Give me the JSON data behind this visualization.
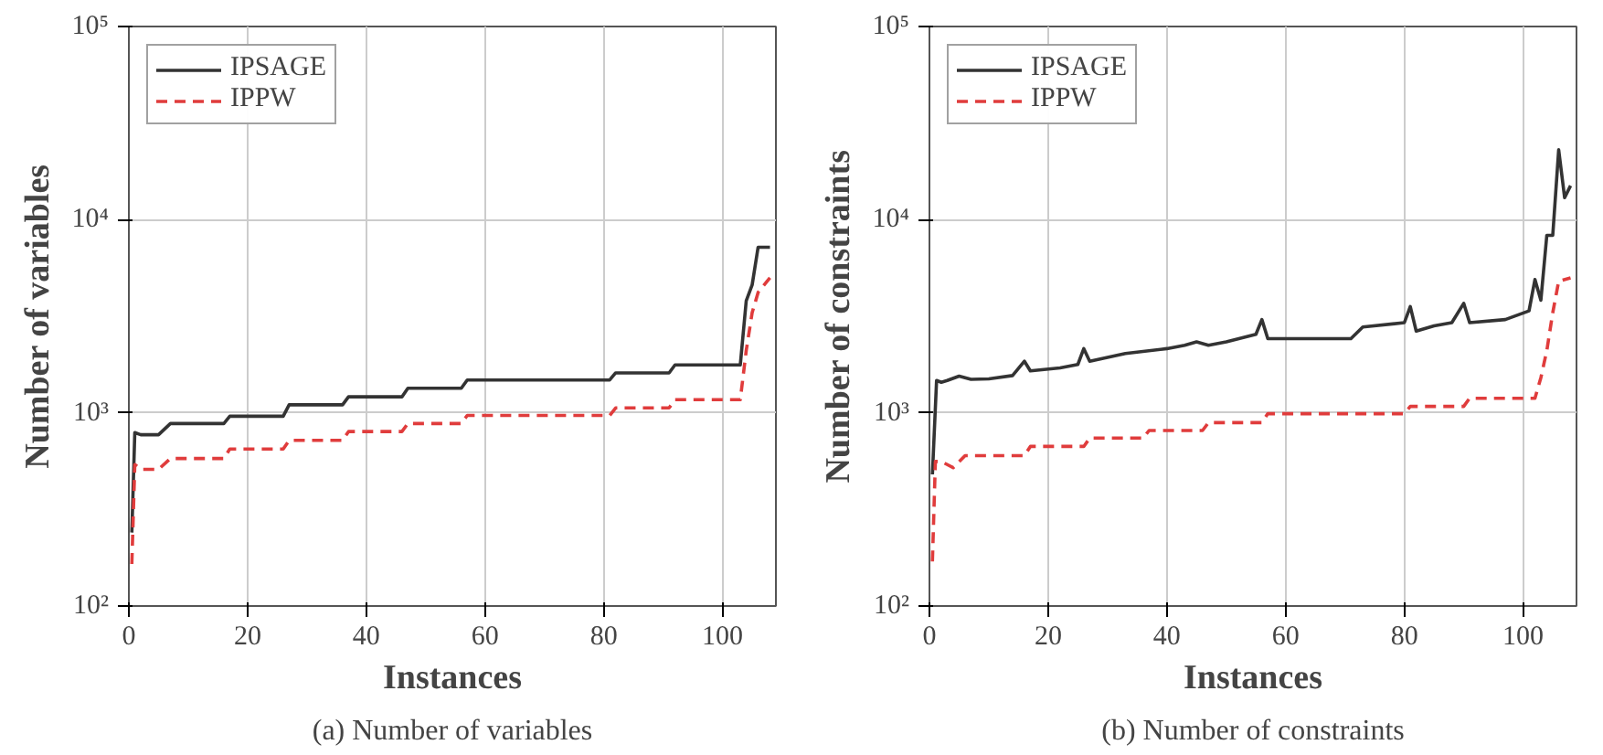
{
  "chart_data": [
    {
      "type": "line",
      "title": "(a) Number of variables",
      "xlabel": "Instances",
      "ylabel": "Number of variables",
      "log": "y",
      "grid": true,
      "legend": "top left",
      "marker": "none",
      "xlim": [
        0,
        109
      ],
      "ylim": [
        100,
        100000
      ],
      "xticks": [
        0,
        20,
        40,
        60,
        80,
        100
      ],
      "yticks": [
        {
          "value": 100,
          "label": "10²"
        },
        {
          "value": 1000,
          "label": "10³"
        },
        {
          "value": 10000,
          "label": "10⁴"
        },
        {
          "value": 100000,
          "label": "10⁵"
        }
      ],
      "series": [
        {
          "name": "IPSAGE",
          "color": "#333333",
          "line_style": "solid",
          "x": [
            0.5,
            1,
            2,
            5,
            7,
            16,
            17,
            26,
            27,
            36,
            37,
            46,
            47,
            56,
            57,
            81,
            82,
            91,
            92,
            103,
            104,
            105,
            106,
            108
          ],
          "values": [
            240,
            790,
            770,
            770,
            880,
            880,
            960,
            960,
            1100,
            1100,
            1210,
            1210,
            1340,
            1340,
            1480,
            1480,
            1610,
            1610,
            1770,
            1770,
            3800,
            4600,
            7200,
            7200
          ]
        },
        {
          "name": "IPPW",
          "color": "#e03c3c",
          "line_style": "dashed",
          "x": [
            0.5,
            1,
            2,
            5,
            7,
            16,
            17,
            26,
            27,
            36,
            37,
            46,
            47,
            56,
            57,
            81,
            82,
            91,
            92,
            103,
            104,
            105,
            106,
            108
          ],
          "values": [
            165,
            540,
            510,
            510,
            580,
            580,
            650,
            650,
            720,
            720,
            800,
            800,
            880,
            880,
            970,
            970,
            1060,
            1060,
            1170,
            1170,
            2100,
            3300,
            4200,
            5000
          ]
        }
      ]
    },
    {
      "type": "line",
      "title": "(b) Number of constraints",
      "xlabel": "Instances",
      "ylabel": "Number of constraints",
      "log": "y",
      "grid": true,
      "legend": "top left",
      "marker": "none",
      "xlim": [
        0,
        109
      ],
      "ylim": [
        100,
        100000
      ],
      "xticks": [
        0,
        20,
        40,
        60,
        80,
        100
      ],
      "yticks": [
        {
          "value": 100,
          "label": "10²"
        },
        {
          "value": 1000,
          "label": "10³"
        },
        {
          "value": 10000,
          "label": "10⁴"
        },
        {
          "value": 100000,
          "label": "10⁵"
        }
      ],
      "series": [
        {
          "name": "IPSAGE",
          "color": "#333333",
          "line_style": "solid",
          "x": [
            0.5,
            1.2,
            2,
            3,
            5,
            7,
            10,
            14,
            16,
            17,
            22,
            25,
            26,
            27,
            33,
            40,
            43,
            45,
            47,
            50,
            55,
            56,
            57,
            71,
            73,
            80,
            81,
            82,
            85,
            88,
            90,
            91,
            97,
            101,
            102,
            103,
            104,
            105,
            106,
            107,
            108
          ],
          "values": [
            480,
            1470,
            1440,
            1470,
            1550,
            1490,
            1500,
            1560,
            1850,
            1650,
            1710,
            1780,
            2150,
            1850,
            2030,
            2150,
            2240,
            2330,
            2240,
            2330,
            2550,
            3040,
            2420,
            2420,
            2780,
            2930,
            3550,
            2650,
            2820,
            2930,
            3690,
            2930,
            3040,
            3370,
            4900,
            3830,
            8300,
            8300,
            23000,
            13000,
            15000
          ]
        },
        {
          "name": "IPPW",
          "color": "#e03c3c",
          "line_style": "dashed",
          "x": [
            0.5,
            1,
            2,
            4,
            6,
            16,
            17,
            26,
            27,
            36,
            37,
            46,
            47,
            56,
            57,
            80,
            81,
            90,
            91,
            102,
            103,
            104,
            105,
            106,
            108
          ],
          "values": [
            170,
            560,
            560,
            520,
            600,
            600,
            670,
            670,
            740,
            740,
            810,
            810,
            890,
            890,
            990,
            990,
            1080,
            1080,
            1190,
            1190,
            1520,
            2100,
            3300,
            4800,
            5000
          ]
        }
      ]
    }
  ]
}
